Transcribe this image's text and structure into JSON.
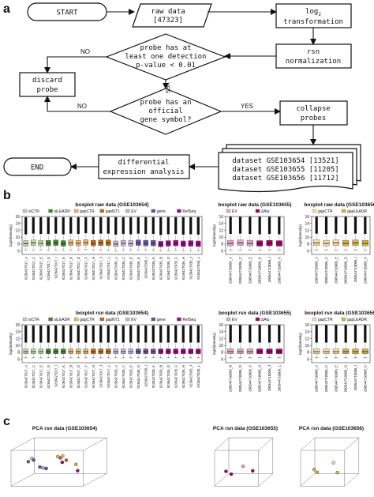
{
  "panels": {
    "a": "a",
    "b": "b",
    "c": "c"
  },
  "flowchart": {
    "start": "START",
    "raw_data": [
      "raw data",
      "[47323]"
    ],
    "log2": [
      "log",
      "2",
      "transformation"
    ],
    "rsn": [
      "rsn",
      "normalization"
    ],
    "detection_q": [
      "probe has at",
      "least one detection",
      "p-value < 0.01"
    ],
    "discard": [
      "discard",
      "probe"
    ],
    "symbol_q": [
      "probe has an",
      "official",
      "gene symbol?"
    ],
    "collapse": [
      "collapse",
      "probes"
    ],
    "datasets": [
      "dataset GSE103654 [13521]",
      "dataset GSE103655 [11205]",
      "dataset GSE103656 [11712]"
    ],
    "diff": [
      "differential",
      "expression analysis"
    ],
    "end": "END",
    "yes": "YES",
    "no": "NO"
  },
  "chart_data": [
    {
      "type": "boxplot",
      "title": "boxplot raw data (GSE103654)",
      "ylabel": "log2(intensity)",
      "ylim": [
        5,
        16
      ],
      "yticks": [
        6,
        8,
        10,
        12,
        14,
        16
      ],
      "legend": [
        {
          "name": "siCTR",
          "color": "#b9d9a0"
        },
        {
          "name": "siLEADR",
          "color": "#3c8a2e"
        },
        {
          "name": "gapCTR",
          "color": "#f2b46c"
        },
        {
          "name": "gapNT1",
          "color": "#c46a14"
        },
        {
          "name": "EV",
          "color": "#c4b4dc"
        },
        {
          "name": "gene",
          "color": "#6a52a3"
        },
        {
          "name": "RefSeq",
          "color": "#a3008c"
        }
      ],
      "categories": [
        "9236427017_A",
        "9236427017_C",
        "9236427017_E",
        "9236427017_G",
        "9236427017_I",
        "9236427017_K",
        "9236427017_B",
        "9236427017_D",
        "9236427017_F",
        "9236427017_H",
        "9236427017_J",
        "9236427017_L",
        "9236427035_A",
        "9236427035_C",
        "9236427035_E",
        "9236427035_G",
        "9236427035_I",
        "9236427035_K",
        "9236427035_B",
        "9236427035_D",
        "9236427035_F",
        "9236427035_H",
        "9236427035_J",
        "9236427035_L"
      ],
      "groups": [
        0,
        0,
        0,
        1,
        1,
        1,
        2,
        2,
        2,
        3,
        3,
        3,
        4,
        4,
        4,
        5,
        5,
        5,
        6,
        6,
        6,
        6,
        6,
        6
      ],
      "q1": [
        7.4,
        7.6,
        7.5,
        7.5,
        7.6,
        7.4,
        7.6,
        7.5,
        7.7,
        7.5,
        7.6,
        7.6,
        7.3,
        7.5,
        7.4,
        7.6,
        7.5,
        7.5,
        7.2,
        7.4,
        7.5,
        7.3,
        7.4,
        7.3
      ],
      "median": [
        8.1,
        8.3,
        8.2,
        8.2,
        8.3,
        8.1,
        8.3,
        8.2,
        8.4,
        8.2,
        8.3,
        8.3,
        8.0,
        8.2,
        8.1,
        8.3,
        8.2,
        8.2,
        7.9,
        8.1,
        8.2,
        8.0,
        8.1,
        8.0
      ],
      "q3": [
        9.0,
        9.2,
        9.1,
        9.1,
        9.2,
        9.0,
        9.2,
        9.1,
        9.3,
        9.1,
        9.2,
        9.2,
        8.9,
        9.1,
        9.0,
        9.2,
        9.1,
        9.1,
        8.8,
        9.0,
        9.1,
        8.9,
        9.0,
        8.9
      ],
      "whisker_low": [
        6.2,
        6.3,
        6.3,
        6.2,
        6.3,
        6.2,
        6.3,
        6.2,
        6.4,
        6.3,
        6.3,
        6.3,
        6.1,
        6.2,
        6.2,
        6.3,
        6.2,
        6.2,
        6.0,
        6.1,
        6.2,
        6.1,
        6.1,
        6.1
      ],
      "whisker_high": [
        10.6,
        10.8,
        10.7,
        10.7,
        10.8,
        10.6,
        10.8,
        10.7,
        10.9,
        10.7,
        10.8,
        10.8,
        10.5,
        10.7,
        10.6,
        10.8,
        10.7,
        10.7,
        10.4,
        10.6,
        10.7,
        10.5,
        10.6,
        10.5
      ],
      "outlier_max": 15.8
    },
    {
      "type": "boxplot",
      "title": "boxplot raw data (GSE103655)",
      "ylabel": "log2(intensity)",
      "ylim": [
        5,
        16
      ],
      "yticks": [
        6,
        8,
        10,
        12,
        14,
        16
      ],
      "legend": [
        {
          "name": "EV",
          "color": "#e8a7c6"
        },
        {
          "name": "ΔAlu",
          "color": "#a3006c"
        }
      ],
      "categories": [
        "200544710006_A",
        "200544710006_C",
        "200544710006_E",
        "200544710006_G",
        "200544710006_I",
        "200544710006_K"
      ],
      "groups": [
        0,
        0,
        0,
        1,
        1,
        1
      ],
      "q1": [
        7.5,
        7.6,
        7.5,
        7.4,
        7.5,
        7.4
      ],
      "median": [
        8.2,
        8.3,
        8.2,
        8.1,
        8.2,
        8.1
      ],
      "q3": [
        9.1,
        9.2,
        9.1,
        9.0,
        9.1,
        9.0
      ],
      "whisker_low": [
        6.3,
        6.3,
        6.3,
        6.2,
        6.3,
        6.2
      ],
      "whisker_high": [
        10.7,
        10.8,
        10.7,
        10.6,
        10.7,
        10.6
      ],
      "outlier_max": 15.9
    },
    {
      "type": "boxplot",
      "title": "boxplot raw data (GSE103656)",
      "ylabel": "log2(intensity)",
      "ylim": [
        5,
        16
      ],
      "yticks": [
        6,
        8,
        10,
        12,
        14,
        16
      ],
      "legend": [
        {
          "name": "gapCTR",
          "color": "#f6dfa6"
        },
        {
          "name": "gapLEADR",
          "color": "#d9b24a"
        }
      ],
      "categories": [
        "200544710006_A",
        "200544710006_C",
        "200544710006_E",
        "200544710006_G",
        "200544710006_I",
        "200544710006_K"
      ],
      "groups": [
        0,
        0,
        0,
        1,
        1,
        1
      ],
      "q1": [
        7.6,
        7.5,
        7.6,
        7.5,
        7.6,
        7.5
      ],
      "median": [
        8.3,
        8.2,
        8.3,
        8.2,
        8.3,
        8.2
      ],
      "q3": [
        9.2,
        9.1,
        9.2,
        9.1,
        9.2,
        9.1
      ],
      "whisker_low": [
        6.3,
        6.3,
        6.3,
        6.2,
        6.3,
        6.2
      ],
      "whisker_high": [
        10.8,
        10.7,
        10.8,
        10.7,
        10.8,
        10.7
      ],
      "outlier_max": 15.9
    },
    {
      "type": "boxplot",
      "title": "boxplot rsn data (GSE103654)",
      "ylabel": "log2(intensity)",
      "ylim": [
        5,
        16
      ],
      "yticks": [
        6,
        8,
        10,
        12,
        14,
        16
      ],
      "legend": [
        {
          "name": "siCTR",
          "color": "#b9d9a0"
        },
        {
          "name": "siLEADR",
          "color": "#3c8a2e"
        },
        {
          "name": "gapCTR",
          "color": "#f2b46c"
        },
        {
          "name": "gapNT1",
          "color": "#c46a14"
        },
        {
          "name": "EV",
          "color": "#c4b4dc"
        },
        {
          "name": "gene",
          "color": "#6a52a3"
        },
        {
          "name": "RefSeq",
          "color": "#a3008c"
        }
      ],
      "categories": [
        "9236427017_A",
        "9236427017_C",
        "9236427017_E",
        "9236427017_G",
        "9236427017_I",
        "9236427017_K",
        "9236427017_B",
        "9236427017_D",
        "9236427017_F",
        "9236427017_H",
        "9236427017_J",
        "9236427017_L",
        "9236427035_A",
        "9236427035_C",
        "9236427035_E",
        "9236427035_G",
        "9236427035_I",
        "9236427035_K",
        "9236427035_B",
        "9236427035_D",
        "9236427035_F",
        "9236427035_H",
        "9236427035_J",
        "9236427035_L"
      ],
      "groups": [
        0,
        0,
        0,
        1,
        1,
        1,
        2,
        2,
        2,
        3,
        3,
        3,
        4,
        4,
        4,
        5,
        5,
        5,
        6,
        6,
        6,
        6,
        6,
        6
      ],
      "q1": [
        7.6,
        7.6,
        7.6,
        7.6,
        7.6,
        7.6,
        7.6,
        7.6,
        7.6,
        7.6,
        7.6,
        7.6,
        7.6,
        7.6,
        7.6,
        7.6,
        7.6,
        7.6,
        7.6,
        7.6,
        7.6,
        7.6,
        7.6,
        7.6
      ],
      "median": [
        8.2,
        8.2,
        8.2,
        8.2,
        8.2,
        8.2,
        8.2,
        8.2,
        8.2,
        8.2,
        8.2,
        8.2,
        8.2,
        8.2,
        8.2,
        8.2,
        8.2,
        8.2,
        8.2,
        8.2,
        8.2,
        8.2,
        8.2,
        8.2
      ],
      "q3": [
        9.0,
        9.0,
        9.0,
        9.0,
        9.0,
        9.0,
        9.0,
        9.0,
        9.0,
        9.0,
        9.0,
        9.0,
        9.0,
        9.0,
        9.0,
        9.0,
        9.0,
        9.0,
        9.0,
        9.0,
        9.0,
        9.0,
        9.0,
        9.0
      ],
      "whisker_low": [
        6.4,
        6.4,
        6.4,
        6.4,
        6.4,
        6.4,
        6.4,
        6.4,
        6.4,
        6.4,
        6.4,
        6.4,
        6.4,
        6.4,
        6.4,
        6.4,
        6.4,
        6.4,
        6.4,
        6.4,
        6.4,
        6.4,
        6.4,
        6.4
      ],
      "whisker_high": [
        10.6,
        10.6,
        10.6,
        10.6,
        10.6,
        10.6,
        10.6,
        10.6,
        10.6,
        10.6,
        10.6,
        10.6,
        10.6,
        10.6,
        10.6,
        10.6,
        10.6,
        10.6,
        10.6,
        10.6,
        10.6,
        10.6,
        10.6,
        10.6
      ],
      "outlier_max": 15.8
    },
    {
      "type": "boxplot",
      "title": "boxplot rsn data (GSE103655)",
      "ylabel": "log2(intensity)",
      "ylim": [
        5,
        16
      ],
      "yticks": [
        6,
        8,
        10,
        12,
        14,
        16
      ],
      "legend": [
        {
          "name": "EV",
          "color": "#e8a7c6"
        },
        {
          "name": "ΔAlu",
          "color": "#a3006c"
        }
      ],
      "categories": [
        "200544710006_B",
        "200544710006_D",
        "200544710006_F",
        "200544710006_H",
        "200544710006_J",
        "200544710006_L"
      ],
      "groups": [
        0,
        0,
        0,
        1,
        1,
        1
      ],
      "q1": [
        7.6,
        7.6,
        7.6,
        7.6,
        7.6,
        7.6
      ],
      "median": [
        8.2,
        8.2,
        8.2,
        8.2,
        8.2,
        8.2
      ],
      "q3": [
        9.0,
        9.0,
        9.0,
        9.0,
        9.0,
        9.0
      ],
      "whisker_low": [
        6.4,
        6.4,
        6.4,
        6.4,
        6.4,
        6.4
      ],
      "whisker_high": [
        10.6,
        10.6,
        10.6,
        10.6,
        10.6,
        10.6
      ],
      "outlier_max": 15.9
    },
    {
      "type": "boxplot",
      "title": "boxplot rsn data (GSE103656)",
      "ylabel": "log2(intensity)",
      "ylim": [
        5,
        16
      ],
      "yticks": [
        6,
        8,
        10,
        12,
        14,
        16
      ],
      "legend": [
        {
          "name": "gapCTR",
          "color": "#f6dfa6"
        },
        {
          "name": "gapLEADR",
          "color": "#d9b24a"
        }
      ],
      "categories": [
        "200544710006_A",
        "200544710006_C",
        "200544710006_E",
        "200544710006_G",
        "200544710006_I",
        "200544710006_K"
      ],
      "groups": [
        0,
        0,
        0,
        1,
        1,
        1
      ],
      "q1": [
        7.6,
        7.6,
        7.6,
        7.6,
        7.6,
        7.6
      ],
      "median": [
        8.2,
        8.2,
        8.2,
        8.2,
        8.2,
        8.2
      ],
      "q3": [
        9.0,
        9.0,
        9.0,
        9.0,
        9.0,
        9.0
      ],
      "whisker_low": [
        6.4,
        6.4,
        6.4,
        6.4,
        6.4,
        6.4
      ],
      "whisker_high": [
        10.6,
        10.6,
        10.6,
        10.6,
        10.6,
        10.6
      ],
      "outlier_max": 15.9
    },
    {
      "type": "scatter",
      "title": "PCA rsn data (GSE103654)",
      "points": [
        {
          "x": 0.18,
          "y": 0.62,
          "z": 0.3,
          "color": "#3c8a2e"
        },
        {
          "x": 0.22,
          "y": 0.7,
          "z": 0.35,
          "color": "#b9d9a0"
        },
        {
          "x": 0.25,
          "y": 0.66,
          "z": 0.32,
          "color": "#6a52a3"
        },
        {
          "x": 0.32,
          "y": 0.45,
          "z": 0.4,
          "color": "#6a52a3"
        },
        {
          "x": 0.36,
          "y": 0.42,
          "z": 0.42,
          "color": "#c4b4dc"
        },
        {
          "x": 0.4,
          "y": 0.4,
          "z": 0.44,
          "color": "#6a52a3"
        },
        {
          "x": 0.55,
          "y": 0.72,
          "z": 0.5,
          "color": "#f2b46c"
        },
        {
          "x": 0.58,
          "y": 0.68,
          "z": 0.52,
          "color": "#c46a14"
        },
        {
          "x": 0.62,
          "y": 0.74,
          "z": 0.48,
          "color": "#f2b46c"
        },
        {
          "x": 0.6,
          "y": 0.55,
          "z": 0.55,
          "color": "#a3008c"
        },
        {
          "x": 0.65,
          "y": 0.6,
          "z": 0.58,
          "color": "#c46a14"
        },
        {
          "x": 0.78,
          "y": 0.48,
          "z": 0.6,
          "color": "#d9b24a"
        },
        {
          "x": 0.8,
          "y": 0.3,
          "z": 0.62,
          "color": "#a3008c"
        }
      ]
    },
    {
      "type": "scatter",
      "title": "PCA rsn data (GSE103655)",
      "points": [
        {
          "x": 0.2,
          "y": 0.35,
          "z": 0.3,
          "color": "#a3006c"
        },
        {
          "x": 0.3,
          "y": 0.25,
          "z": 0.4,
          "color": "#a3006c"
        },
        {
          "x": 0.55,
          "y": 0.45,
          "z": 0.5,
          "color": "#e8a7c6"
        },
        {
          "x": 0.75,
          "y": 0.3,
          "z": 0.6,
          "color": "#a3006c"
        }
      ]
    },
    {
      "type": "scatter",
      "title": "PCA rsn data (GSE103656)",
      "points": [
        {
          "x": 0.25,
          "y": 0.4,
          "z": 0.3,
          "color": "#d9b24a"
        },
        {
          "x": 0.3,
          "y": 0.3,
          "z": 0.4,
          "color": "#d9b24a"
        },
        {
          "x": 0.65,
          "y": 0.55,
          "z": 0.5,
          "color": "#f6dfa6"
        },
        {
          "x": 0.72,
          "y": 0.25,
          "z": 0.6,
          "color": "#d9b24a"
        }
      ]
    }
  ]
}
